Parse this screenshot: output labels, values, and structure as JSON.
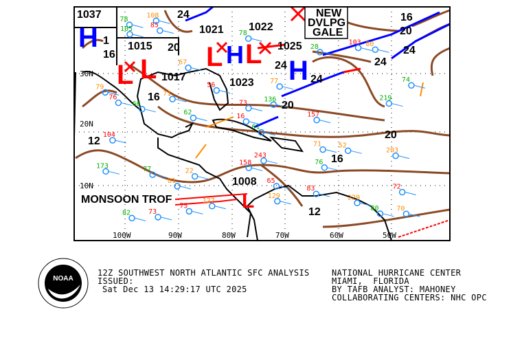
{
  "map": {
    "colors": {
      "isobar": "#8b4a25",
      "cold_front": "#0000ff",
      "warm_front": "#ff0000",
      "coast": "#000000",
      "high": "#0000ff",
      "low": "#ff0000",
      "trough": "#ff8c00",
      "station": "#1e8fff"
    },
    "lon_ticks": [
      "100W",
      "90W",
      "80W",
      "70W",
      "60W",
      "50W"
    ],
    "lat_ticks": [
      "30N",
      "20N",
      "10N"
    ],
    "pressure_centers": [
      {
        "type": "H",
        "value": "1037"
      },
      {
        "type": "L",
        "value": "1015"
      },
      {
        "type": "L",
        "value": "1017"
      },
      {
        "type": "L",
        "value": "1021"
      },
      {
        "type": "L",
        "value": "1022"
      },
      {
        "type": "H",
        "value": "1025"
      },
      {
        "type": "H",
        "value": "1023"
      },
      {
        "type": "L",
        "value": "1008"
      }
    ],
    "isobar_labels": [
      "24",
      "16",
      "20",
      "24",
      "24",
      "24",
      "24",
      "16",
      "20",
      "1",
      "16",
      "20",
      "20",
      "12",
      "16",
      "12"
    ],
    "annotations": {
      "gale_line1": "NEW",
      "gale_line2": "DVLPG",
      "gale_line3": "GALE",
      "monsoon": "MONSOON TROF"
    },
    "station_values": [
      "61",
      "16",
      "22",
      "28",
      "85",
      "70",
      "66",
      "73",
      "77",
      "77",
      "56",
      "52",
      "78",
      "76",
      "71",
      "74",
      "73",
      "67",
      "80",
      "72",
      "71",
      "76",
      "75",
      "79",
      "82",
      "83",
      "81",
      "78",
      "65",
      "80",
      "62",
      "103",
      "108",
      "173",
      "158",
      "127",
      "105",
      "104",
      "129",
      "136",
      "157",
      "203",
      "219",
      "243",
      "229"
    ]
  },
  "caption": {
    "title": "12Z SOUTHWEST NORTH ATLANTIC SFC ANALYSIS",
    "issued_label": "ISSUED:",
    "issued_time": "Sat Dec 13 14:29:17 UTC 2025",
    "center": "NATIONAL HURRICANE CENTER",
    "location": "MIAMI,  FLORIDA",
    "analyst": "BY TAFB ANALYST: MAHONEY",
    "collab": "COLLABORATING CENTERS: NHC OPC",
    "logo_text": "NOAA"
  }
}
